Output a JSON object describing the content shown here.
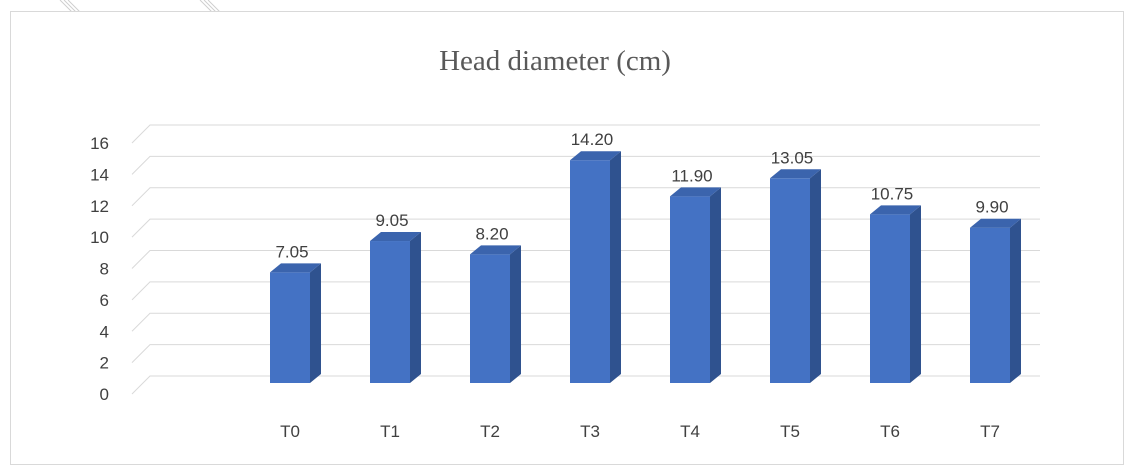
{
  "chart_data": {
    "type": "bar",
    "title": "Head diameter (cm)",
    "xlabel": "",
    "ylabel": "",
    "categories": [
      "T0",
      "T1",
      "T2",
      "T3",
      "T4",
      "T5",
      "T6",
      "T7"
    ],
    "values": [
      7.05,
      9.05,
      8.2,
      14.2,
      11.9,
      13.05,
      10.75,
      9.9
    ],
    "data_labels": [
      "7.05",
      "9.05",
      "8.20",
      "14.20",
      "11.90",
      "13.05",
      "10.75",
      "9.90"
    ],
    "ylim": [
      0,
      16
    ],
    "y_ticks": [
      "0",
      "2",
      "4",
      "6",
      "8",
      "10",
      "12",
      "14",
      "16"
    ],
    "grid": true,
    "style_3d": true,
    "legend": "none",
    "colors": {
      "bar_front": "#4472c4",
      "bar_side": "#2f528f",
      "bar_top": "#3b64ad",
      "gridline": "#d9d9d9",
      "text": "#404040",
      "title": "#595959",
      "frame": "#d9d9d9"
    }
  }
}
